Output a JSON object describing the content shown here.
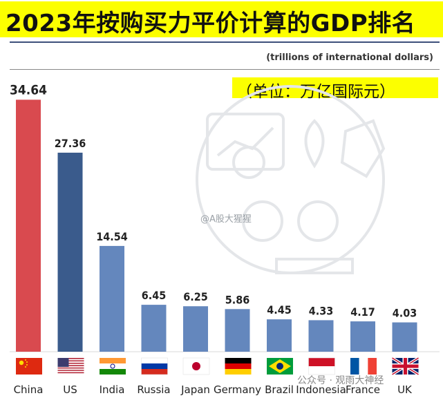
{
  "header": {
    "title": "2023年按购买力平价计算的GDP排名",
    "subtitle": "(trillions of international dollars)",
    "unit_note": "（单位：万亿国际元）"
  },
  "watermark": "@A股大猩猩",
  "footer_note": "公众号 · 观雨大神经",
  "colors": {
    "title_band": "#fcff00",
    "bar_china": "#d94a4f",
    "bar_us": "#3a5b8c",
    "bar_others": "#6487bd"
  },
  "chart_data": {
    "type": "bar",
    "title": "2023年按购买力平价计算的GDP排名",
    "ylabel": "",
    "xlabel": "",
    "ylim": [
      0,
      36
    ],
    "categories": [
      "China",
      "US",
      "India",
      "Russia",
      "Japan",
      "Germany",
      "Brazil",
      "Indonesia",
      "France",
      "UK"
    ],
    "values": [
      34.64,
      27.36,
      14.54,
      6.45,
      6.25,
      5.86,
      4.45,
      4.33,
      4.17,
      4.03
    ],
    "value_labels": [
      "34.64",
      "27.36",
      "14.54",
      "6.45",
      "6.25",
      "5.86",
      "4.45",
      "4.33",
      "4.17",
      "4.03"
    ],
    "flags": [
      "china-flag-icon",
      "us-flag-icon",
      "india-flag-icon",
      "russia-flag-icon",
      "japan-flag-icon",
      "germany-flag-icon",
      "brazil-flag-icon",
      "indonesia-flag-icon",
      "france-flag-icon",
      "uk-flag-icon"
    ]
  }
}
